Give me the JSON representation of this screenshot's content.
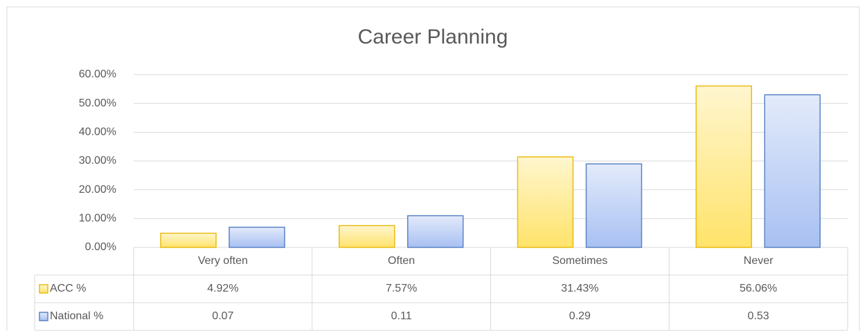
{
  "chart_data": {
    "type": "bar",
    "title": "Career Planning",
    "categories": [
      "Very often",
      "Often",
      "Sometimes",
      "Never"
    ],
    "series": [
      {
        "name": "ACC %",
        "color": "#e9bb12",
        "values": [
          4.92,
          7.57,
          31.43,
          56.06
        ],
        "value_labels": [
          "4.92%",
          "7.57%",
          "31.43%",
          "56.06%"
        ]
      },
      {
        "name": "National %",
        "color": "#5b84c6",
        "values": [
          7,
          11,
          29,
          53
        ],
        "value_labels": [
          "0.07",
          "0.11",
          "0.29",
          "0.53"
        ]
      }
    ],
    "ylim": [
      0,
      60
    ],
    "yticks": [
      {
        "value": 0,
        "label": "0.00%"
      },
      {
        "value": 10,
        "label": "10.00%"
      },
      {
        "value": 20,
        "label": "20.00%"
      },
      {
        "value": 30,
        "label": "30.00%"
      },
      {
        "value": 40,
        "label": "40.00%"
      },
      {
        "value": 50,
        "label": "50.00%"
      },
      {
        "value": 60,
        "label": "60.00%"
      }
    ],
    "grid": true
  }
}
